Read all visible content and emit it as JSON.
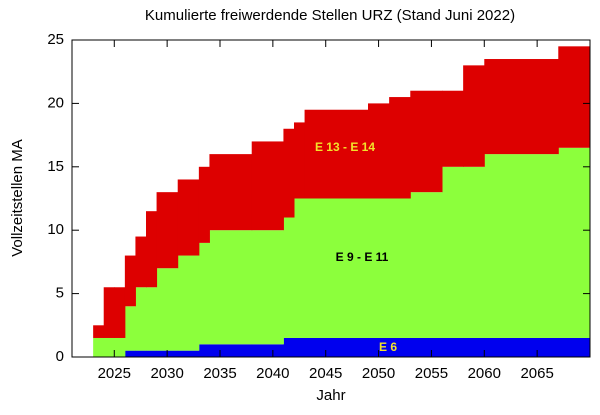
{
  "chart_data": {
    "type": "stacked-step-area",
    "title": "Kumulierte freiwerdende Stellen URZ (Stand Juni 2022)",
    "x_label": "Jahr",
    "y_label": "Vollzeitstellen MA",
    "x": [
      2023,
      2024,
      2025,
      2026,
      2027,
      2028,
      2029,
      2031,
      2033,
      2034,
      2038,
      2041,
      2042,
      2043,
      2049,
      2051,
      2053,
      2056,
      2058,
      2060,
      2067
    ],
    "series": [
      {
        "name": "E 6",
        "color": "#0000ee",
        "label_color": "#f2e22a",
        "values": [
          0,
          0,
          0,
          0.5,
          0.5,
          0.5,
          0.5,
          0.5,
          1,
          1,
          1,
          1.5,
          1.5,
          1.5,
          1.5,
          1.5,
          1.5,
          1.5,
          1.5,
          1.5,
          1.5
        ]
      },
      {
        "name": "E 9 - E 11",
        "color": "#8cff3c",
        "label_color": "#000000",
        "values": [
          1.5,
          1.5,
          1.5,
          3.5,
          5,
          5,
          6.5,
          7.5,
          8,
          9,
          9,
          9.5,
          11,
          11,
          11,
          11,
          11.5,
          13.5,
          13.5,
          14.5,
          15
        ]
      },
      {
        "name": "E 13 - E 14",
        "color": "#dd0000",
        "label_color": "#f2e22a",
        "values": [
          1,
          4,
          4,
          4,
          4,
          6,
          6,
          6,
          6,
          6,
          7,
          7,
          6,
          7,
          7.5,
          8,
          8,
          6,
          8,
          7.5,
          8
        ]
      }
    ],
    "xlim": [
      2021,
      2070
    ],
    "xticks": [
      2025,
      2030,
      2035,
      2040,
      2045,
      2050,
      2055,
      2060,
      2065
    ],
    "ylim": [
      0,
      25
    ],
    "yticks": [
      0,
      5,
      10,
      15,
      20,
      25
    ]
  }
}
